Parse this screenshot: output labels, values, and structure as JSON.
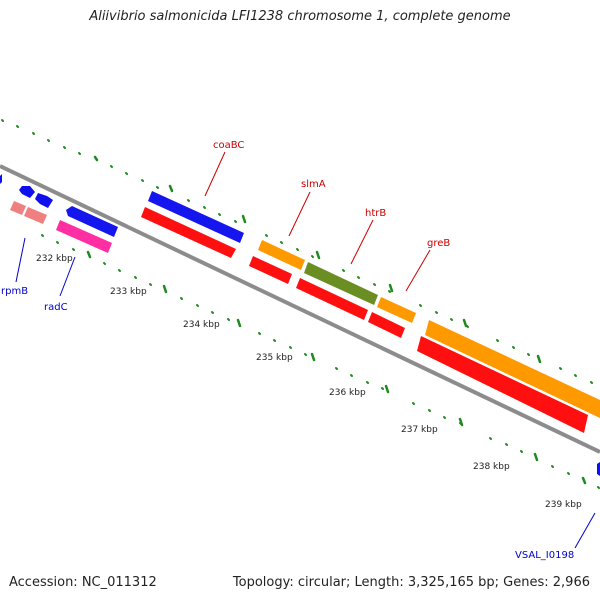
{
  "title": "Aliivibrio salmonicida LFI1238 chromosome 1, complete genome",
  "footer": {
    "accession": "Accession: NC_011312",
    "summary": "Topology: circular; Length: 3,325,165 bp; Genes: 2,966"
  },
  "colors": {
    "backbone": "#8c8c8c",
    "tick": "#1f8a1f",
    "forward_gene": "#1010ee",
    "orange_gene": "#ff9900",
    "red_gene": "#ff1010",
    "olive_gene": "#6b8e23",
    "pink_gene": "#ff2fa3",
    "light_red_gene": "#f08080",
    "label_red": "#cc0000",
    "label_blue": "#0000cc"
  },
  "scale_labels": [
    "232 kbp",
    "233 kbp",
    "234 kbp",
    "235 kbp",
    "236 kbp",
    "237 kbp",
    "238 kbp",
    "239 kbp"
  ],
  "gene_labels": [
    {
      "text": "coaBC",
      "color": "red"
    },
    {
      "text": "slmA",
      "color": "red"
    },
    {
      "text": "htrB",
      "color": "red"
    },
    {
      "text": "greB",
      "color": "red"
    },
    {
      "text": "rpmB",
      "color": "blue"
    },
    {
      "text": "radC",
      "color": "blue"
    },
    {
      "text": "VSAL_I0198",
      "color": "blue"
    }
  ]
}
